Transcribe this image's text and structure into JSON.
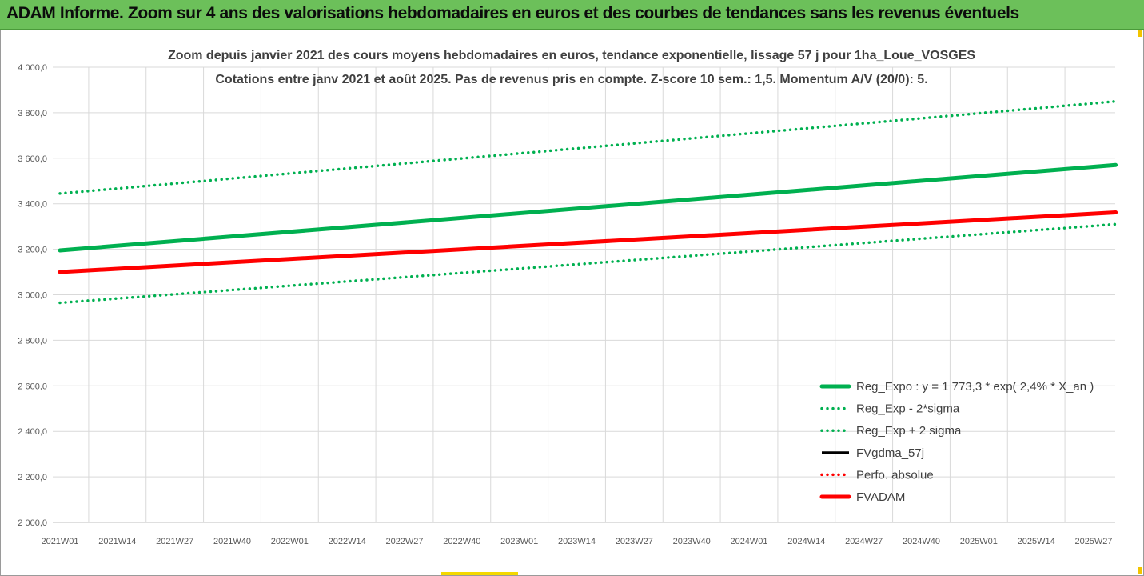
{
  "header": {
    "title": "ADAM Informe. Zoom sur 4 ans des valorisations hebdomadaires en euros et des courbes de tendances sans les revenus éventuels"
  },
  "colors": {
    "header_bg": "#6cc05a",
    "trend_green": "#00b050",
    "adam_red": "#ff0000",
    "black": "#000000",
    "grid": "#d9d9d9"
  },
  "chart_data": {
    "type": "line",
    "title": "Zoom depuis janvier 2021 des cours moyens hebdomadaires en euros, tendance exponentielle, lissage 57 j pour 1ha_Loue_VOSGES",
    "subtitle": "Cotations entre janv 2021 et août 2025.  Pas de revenus pris en compte. Z-score 10 sem.: 1,5. Momentum A/V (20/0): 5.",
    "x_tick_labels": [
      "2021W01",
      "2021W14",
      "2021W27",
      "2021W40",
      "2022W01",
      "2022W14",
      "2022W27",
      "2022W40",
      "2023W01",
      "2023W14",
      "2023W27",
      "2023W40",
      "2024W01",
      "2024W14",
      "2024W27",
      "2024W40",
      "2025W01",
      "2025W14",
      "2025W27"
    ],
    "y_tick_labels": [
      "2 000,0",
      "2 200,0",
      "2 400,0",
      "2 600,0",
      "2 800,0",
      "3 000,0",
      "3 200,0",
      "3 400,0",
      "3 600,0",
      "3 800,0",
      "4 000,0"
    ],
    "ylim": [
      2000,
      4000
    ],
    "grid": true,
    "legend_position": "bottom-right",
    "series": [
      {
        "name": "Reg_Expo : y = 1 773,3 * exp( 2,4% *  X_an )",
        "style": "solid-thick",
        "color": "#00b050",
        "x": [
          "2021W01",
          "2025W32"
        ],
        "y": [
          3195,
          3570
        ]
      },
      {
        "name": "Reg_Exp - 2*sigma",
        "style": "dotted",
        "color": "#00b050",
        "x": [
          "2021W01",
          "2025W32"
        ],
        "y": [
          2965,
          3310
        ]
      },
      {
        "name": "Reg_Exp + 2 sigma",
        "style": "dotted",
        "color": "#00b050",
        "x": [
          "2021W01",
          "2025W32"
        ],
        "y": [
          3445,
          3850
        ]
      },
      {
        "name": "FVgdma_57j",
        "style": "solid",
        "color": "#000000",
        "x": [],
        "y": []
      },
      {
        "name": "Perfo. absolue",
        "style": "dotted",
        "color": "#ff0000",
        "x": [],
        "y": []
      },
      {
        "name": "FVADAM",
        "style": "solid-thick",
        "color": "#ff0000",
        "x": [
          "2021W01",
          "2025W32"
        ],
        "y": [
          3100,
          3362
        ]
      }
    ]
  }
}
